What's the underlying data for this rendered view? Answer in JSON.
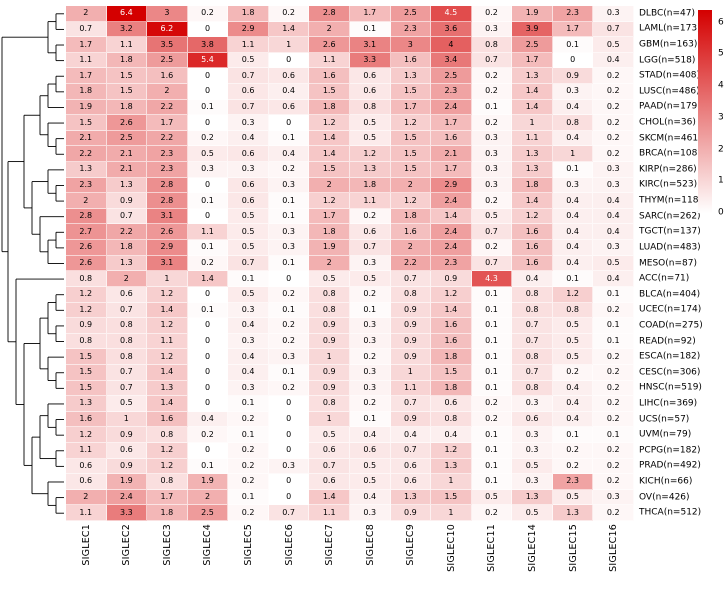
{
  "chart_data": {
    "type": "heatmap",
    "title": "",
    "xlabel": "",
    "ylabel": "",
    "scale_max": 6.4,
    "columns": [
      "SIGLEC1",
      "SIGLEC2",
      "SIGLEC3",
      "SIGLEC4",
      "SIGLEC5",
      "SIGLEC6",
      "SIGLEC7",
      "SIGLEC8",
      "SIGLEC9",
      "SIGLEC10",
      "SIGLEC11",
      "SIGLEC14",
      "SIGLEC15",
      "SIGLEC16"
    ],
    "rows": [
      {
        "label": "DLBC(n=47)",
        "values": [
          2,
          6.4,
          3,
          0.2,
          1.8,
          0.2,
          2.8,
          1.7,
          2.5,
          4.5,
          0.2,
          1.9,
          2.3,
          0.3
        ]
      },
      {
        "label": "LAML(n=173)",
        "values": [
          0.7,
          3.2,
          6.2,
          0,
          2.9,
          1.4,
          2,
          0.1,
          2.3,
          3.6,
          0.3,
          3.9,
          1.7,
          0.7
        ]
      },
      {
        "label": "GBM(n=163)",
        "values": [
          1.7,
          1.1,
          3.5,
          3.8,
          1.1,
          1,
          2.6,
          3.1,
          3,
          4,
          0.8,
          2.5,
          0.1,
          0.5
        ]
      },
      {
        "label": "LGG(n=518)",
        "values": [
          1.1,
          1.8,
          2.5,
          5.4,
          0.5,
          0,
          1.1,
          3.3,
          1.6,
          3.4,
          0.7,
          1.7,
          0,
          0.4
        ]
      },
      {
        "label": "STAD(n=408)",
        "values": [
          1.7,
          1.5,
          1.6,
          0,
          0.7,
          0.6,
          1.6,
          0.6,
          1.3,
          2.5,
          0.2,
          1.3,
          0.9,
          0.2
        ]
      },
      {
        "label": "LUSC(n=486)",
        "values": [
          1.8,
          1.5,
          2,
          0,
          0.6,
          0.4,
          1.5,
          0.6,
          1.5,
          2.3,
          0.2,
          1.4,
          0.3,
          0.2
        ]
      },
      {
        "label": "PAAD(n=179)",
        "values": [
          1.9,
          1.8,
          2.2,
          0.1,
          0.7,
          0.6,
          1.8,
          0.8,
          1.7,
          2.4,
          0.1,
          1.4,
          0.4,
          0.2
        ]
      },
      {
        "label": "CHOL(n=36)",
        "values": [
          1.5,
          2.6,
          1.7,
          0,
          0.3,
          0,
          1.2,
          0.5,
          1.2,
          1.7,
          0.2,
          1,
          0.8,
          0.2
        ]
      },
      {
        "label": "SKCM(n=461)",
        "values": [
          2.1,
          2.5,
          2.2,
          0.2,
          0.4,
          0.1,
          1.4,
          0.5,
          1.5,
          1.6,
          0.3,
          1.1,
          0.4,
          0.2
        ]
      },
      {
        "label": "BRCA(n=1085)",
        "values": [
          2.2,
          2.1,
          2.3,
          0.5,
          0.6,
          0.4,
          1.4,
          1.2,
          1.5,
          2.1,
          0.3,
          1.3,
          1,
          0.2
        ]
      },
      {
        "label": "KIRP(n=286)",
        "values": [
          1.3,
          2.1,
          2.3,
          0.3,
          0.3,
          0.2,
          1.5,
          1.3,
          1.5,
          1.7,
          0.3,
          1.3,
          0.1,
          0.3
        ]
      },
      {
        "label": "KIRC(n=523)",
        "values": [
          2.3,
          1.3,
          2.8,
          0,
          0.6,
          0.3,
          2,
          1.8,
          2,
          2.9,
          0.3,
          1.8,
          0.3,
          0.3
        ]
      },
      {
        "label": "THYM(n=118)",
        "values": [
          2,
          0.9,
          2.8,
          0.1,
          0.6,
          0.1,
          1.2,
          1.1,
          1.2,
          2.4,
          0.2,
          1.4,
          0.4,
          0.4
        ]
      },
      {
        "label": "SARC(n=262)",
        "values": [
          2.8,
          0.7,
          3.1,
          0,
          0.5,
          0.1,
          1.7,
          0.2,
          1.8,
          1.4,
          0.5,
          1.2,
          0.4,
          0.4
        ]
      },
      {
        "label": "TGCT(n=137)",
        "values": [
          2.7,
          2.2,
          2.6,
          1.1,
          0.5,
          0.3,
          1.8,
          0.6,
          1.6,
          2.4,
          0.7,
          1.6,
          0.4,
          0.4
        ]
      },
      {
        "label": "LUAD(n=483)",
        "values": [
          2.6,
          1.8,
          2.9,
          0.1,
          0.5,
          0.3,
          1.9,
          0.7,
          2,
          2.4,
          0.2,
          1.6,
          0.4,
          0.3
        ]
      },
      {
        "label": "MESO(n=87)",
        "values": [
          2.6,
          1.3,
          3.1,
          0.2,
          0.7,
          0.1,
          2,
          0.3,
          2.2,
          2.3,
          0.7,
          1.6,
          0.4,
          0.5
        ]
      },
      {
        "label": "ACC(n=71)",
        "values": [
          0.8,
          2,
          1,
          1.4,
          0.1,
          0,
          0.5,
          0.5,
          0.7,
          0.9,
          4.3,
          0.4,
          0.1,
          0.4
        ]
      },
      {
        "label": "BLCA(n=404)",
        "values": [
          1.2,
          0.6,
          1.2,
          0,
          0.5,
          0.2,
          0.8,
          0.2,
          0.8,
          1.2,
          0.1,
          0.8,
          1.2,
          0.1
        ]
      },
      {
        "label": "UCEC(n=174)",
        "values": [
          1.2,
          0.7,
          1.4,
          0.1,
          0.3,
          0.1,
          0.8,
          0.1,
          0.9,
          1.4,
          0.1,
          0.8,
          0.8,
          0.2
        ]
      },
      {
        "label": "COAD(n=275)",
        "values": [
          0.9,
          0.8,
          1.2,
          0,
          0.4,
          0.2,
          0.9,
          0.3,
          0.9,
          1.6,
          0.1,
          0.7,
          0.5,
          0.1
        ]
      },
      {
        "label": "READ(n=92)",
        "values": [
          0.8,
          0.8,
          1.1,
          0,
          0.3,
          0.2,
          0.9,
          0.3,
          0.9,
          1.6,
          0.1,
          0.7,
          0.5,
          0.1
        ]
      },
      {
        "label": "ESCA(n=182)",
        "values": [
          1.5,
          0.8,
          1.2,
          0,
          0.4,
          0.3,
          1,
          0.2,
          0.9,
          1.8,
          0.1,
          0.8,
          0.5,
          0.2
        ]
      },
      {
        "label": "CESC(n=306)",
        "values": [
          1.5,
          0.7,
          1.4,
          0,
          0.4,
          0.1,
          0.9,
          0.3,
          1,
          1.5,
          0.1,
          0.7,
          0.2,
          0.2
        ]
      },
      {
        "label": "HNSC(n=519)",
        "values": [
          1.5,
          0.7,
          1.3,
          0,
          0.3,
          0.2,
          0.9,
          0.3,
          1.1,
          1.8,
          0.1,
          0.8,
          0.4,
          0.2
        ]
      },
      {
        "label": "LIHC(n=369)",
        "values": [
          1.3,
          0.5,
          1.4,
          0,
          0.1,
          0,
          0.8,
          0.2,
          0.7,
          0.6,
          0.2,
          0.3,
          0.4,
          0.2
        ]
      },
      {
        "label": "UCS(n=57)",
        "values": [
          1.6,
          1,
          1.6,
          0.4,
          0.2,
          0,
          1,
          0.1,
          0.9,
          0.8,
          0.2,
          0.6,
          0.4,
          0.2
        ]
      },
      {
        "label": "UVM(n=79)",
        "values": [
          1.2,
          0.9,
          0.8,
          0.2,
          0.1,
          0,
          0.5,
          0.4,
          0.4,
          0.4,
          0.1,
          0.3,
          0.1,
          0.1
        ]
      },
      {
        "label": "PCPG(n=182)",
        "values": [
          1.1,
          0.6,
          1.2,
          0,
          0.2,
          0,
          0.6,
          0.6,
          0.7,
          1.2,
          0.1,
          0.3,
          0.2,
          0.2
        ]
      },
      {
        "label": "PRAD(n=492)",
        "values": [
          0.6,
          0.9,
          1.2,
          0.1,
          0.2,
          0.3,
          0.7,
          0.5,
          0.6,
          1.3,
          0.1,
          0.5,
          0.2,
          0.2
        ]
      },
      {
        "label": "KICH(n=66)",
        "values": [
          0.6,
          1.9,
          0.8,
          1.9,
          0.2,
          0,
          0.6,
          0.5,
          0.6,
          1,
          0.1,
          0.3,
          2.3,
          0.2
        ]
      },
      {
        "label": "OV(n=426)",
        "values": [
          2,
          2.4,
          1.7,
          2,
          0.1,
          0,
          1.4,
          0.4,
          1.3,
          1.5,
          0.5,
          1.3,
          0.5,
          0.3
        ]
      },
      {
        "label": "THCA(n=512)",
        "values": [
          1.1,
          3.3,
          1.8,
          2.5,
          0.2,
          0.7,
          1.1,
          0.3,
          0.9,
          1,
          0.2,
          0.5,
          1.3,
          0.2
        ]
      }
    ],
    "colorbar": {
      "position": "top-right",
      "ticks": [
        6,
        5,
        4,
        3,
        2,
        1,
        0
      ],
      "low_color": "#FFFFFF",
      "high_color": "#D40000"
    },
    "grid": false,
    "legend_position": "right",
    "dendrogram": [
      [
        [
          0,
          1
        ],
        [
          2,
          3
        ]
      ],
      [
        [
          [
            [
              [
                4,
                5
              ],
              6
            ],
            [
              7,
              [
                8,
                9
              ]
            ]
          ],
          [
            [
              10,
              [
                11,
                12
              ]
            ],
            [
              13,
              [
                [
                  14,
                  15
                ],
                16
              ]
            ]
          ]
        ],
        [
          17,
          [
            [
              [
                [
                  18,
                  19
                ],
                [
                  20,
                  21
                ]
              ],
              [
                22,
                [
                  23,
                  24
                ]
              ]
            ],
            [
              [
                [
                  25,
                  [
                    26,
                    27
                  ]
                ],
                [
                  28,
                  29
                ]
              ],
              [
                30,
                [
                  31,
                  32
                ]
              ]
            ]
          ]
        ]
      ]
    ]
  }
}
